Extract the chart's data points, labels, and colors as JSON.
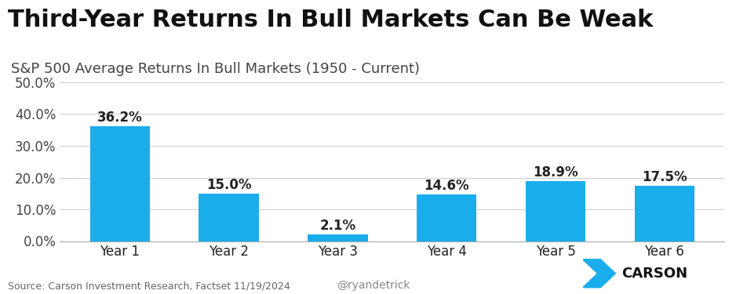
{
  "title": "Third-Year Returns In Bull Markets Can Be Weak",
  "subtitle": "S&P 500 Average Returns In Bull Markets (1950 - Current)",
  "categories": [
    "Year 1",
    "Year 2",
    "Year 3",
    "Year 4",
    "Year 5",
    "Year 6"
  ],
  "values": [
    36.2,
    15.0,
    2.1,
    14.6,
    18.9,
    17.5
  ],
  "labels": [
    "36.2%",
    "15.0%",
    "2.1%",
    "14.6%",
    "18.9%",
    "17.5%"
  ],
  "bar_color": "#1aadec",
  "background_color": "#ffffff",
  "ylim": [
    0,
    50
  ],
  "yticks": [
    0,
    10,
    20,
    30,
    40,
    50
  ],
  "ytick_labels": [
    "0.0%",
    "10.0%",
    "20.0%",
    "30.0%",
    "40.0%",
    "50.0%"
  ],
  "title_fontsize": 22,
  "subtitle_fontsize": 13,
  "label_fontsize": 12,
  "tick_fontsize": 12,
  "source_text": "Source: Carson Investment Research, Factset 11/19/2024",
  "watermark_text": "@ryandetrick",
  "source_fontsize": 9,
  "watermark_fontsize": 10
}
